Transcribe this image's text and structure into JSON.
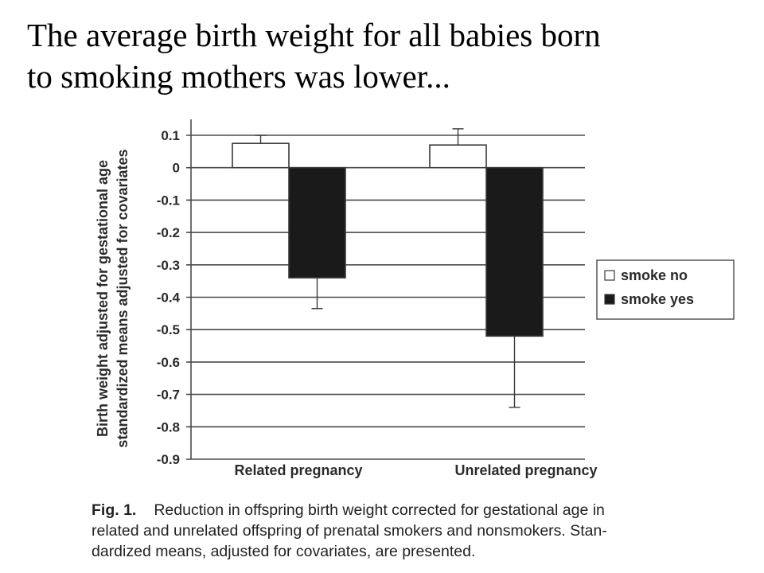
{
  "slide": {
    "title_lines": [
      "The average birth weight for all babies born",
      "to smoking mothers was lower..."
    ]
  },
  "chart_data": {
    "type": "bar",
    "categories": [
      "Related pregnancy",
      "Unrelated pregnancy"
    ],
    "series": [
      {
        "name": "smoke no",
        "color": "#ffffff",
        "values": [
          0.075,
          0.07
        ],
        "error_upper": [
          0.1,
          0.12
        ]
      },
      {
        "name": "smoke yes",
        "color": "#1a1a1a",
        "values": [
          -0.34,
          -0.52
        ],
        "error_lower": [
          -0.435,
          -0.74
        ]
      }
    ],
    "ylabel_lines": [
      "Birth weight adjusted for gestational age",
      "standardized means adjusted for covariates"
    ],
    "ylim": [
      -0.9,
      0.1
    ],
    "yticks": [
      "0.1",
      "0",
      "-0.1",
      "-0.2",
      "-0.3",
      "-0.4",
      "-0.5",
      "-0.6",
      "-0.7",
      "-0.8",
      "-0.9"
    ],
    "grid": true,
    "legend_position": "right"
  },
  "caption": {
    "label": "Fig. 1.",
    "lines": [
      "Reduction in offspring birth weight corrected for gestational age in",
      "related and unrelated offspring of prenatal smokers and nonsmokers. Stan-",
      "dardized means, adjusted for covariates, are presented."
    ]
  }
}
